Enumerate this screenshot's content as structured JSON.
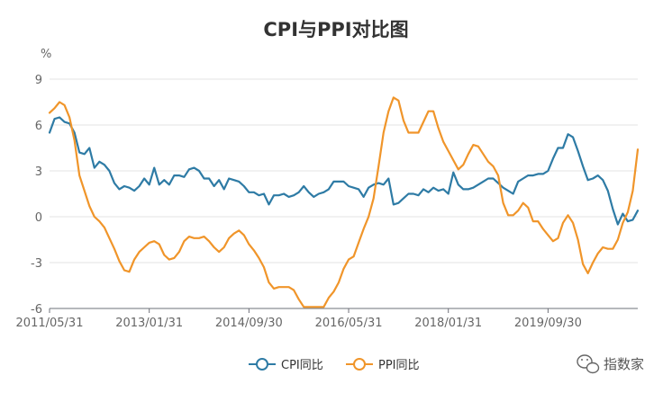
{
  "chart_data": {
    "type": "line",
    "title": "CPI与PPI对比图",
    "y_unit": "%",
    "ylim": [
      -6,
      9
    ],
    "y_ticks": [
      "9",
      "6",
      "3",
      "0",
      "-3",
      "-6"
    ],
    "x_tick_labels": [
      "2011/05/31",
      "2013/01/31",
      "2014/09/30",
      "2016/05/31",
      "2018/01/31",
      "2019/09/30"
    ],
    "grid": "horizontal",
    "legend_position": "bottom-center",
    "series": [
      {
        "name": "CPI同比",
        "color": "#2e7ba5",
        "values": [
          5.5,
          6.4,
          6.5,
          6.2,
          6.1,
          5.5,
          4.2,
          4.1,
          4.5,
          3.2,
          3.6,
          3.4,
          3.0,
          2.2,
          1.8,
          2.0,
          1.9,
          1.7,
          2.0,
          2.5,
          2.1,
          3.2,
          2.1,
          2.4,
          2.1,
          2.7,
          2.7,
          2.6,
          3.1,
          3.2,
          3.0,
          2.5,
          2.5,
          2.0,
          2.4,
          1.8,
          2.5,
          2.4,
          2.3,
          2.0,
          1.6,
          1.6,
          1.4,
          1.5,
          0.8,
          1.4,
          1.4,
          1.5,
          1.3,
          1.4,
          1.6,
          2.0,
          1.6,
          1.3,
          1.5,
          1.6,
          1.8,
          2.3,
          2.3,
          2.3,
          2.0,
          1.9,
          1.8,
          1.3,
          1.9,
          2.1,
          2.2,
          2.1,
          2.5,
          0.8,
          0.9,
          1.2,
          1.5,
          1.5,
          1.4,
          1.8,
          1.6,
          1.9,
          1.7,
          1.8,
          1.5,
          2.9,
          2.1,
          1.8,
          1.8,
          1.9,
          2.1,
          2.3,
          2.5,
          2.5,
          2.2,
          1.9,
          1.7,
          1.5,
          2.3,
          2.5,
          2.7,
          2.7,
          2.8,
          2.8,
          3.0,
          3.8,
          4.5,
          4.5,
          5.4,
          5.2,
          4.3,
          3.3,
          2.4,
          2.5,
          2.7,
          2.4,
          1.7,
          0.5,
          -0.5,
          0.2,
          -0.3,
          -0.2,
          0.4
        ]
      },
      {
        "name": "PPI同比",
        "color": "#f0952a",
        "values": [
          6.8,
          7.1,
          7.5,
          7.3,
          6.5,
          5.0,
          2.7,
          1.7,
          0.7,
          0.0,
          -0.3,
          -0.7,
          -1.4,
          -2.1,
          -2.9,
          -3.5,
          -3.6,
          -2.8,
          -2.3,
          -2.0,
          -1.7,
          -1.6,
          -1.8,
          -2.5,
          -2.8,
          -2.7,
          -2.3,
          -1.6,
          -1.3,
          -1.4,
          -1.4,
          -1.3,
          -1.6,
          -2.0,
          -2.3,
          -2.0,
          -1.4,
          -1.1,
          -0.9,
          -1.2,
          -1.8,
          -2.2,
          -2.7,
          -3.3,
          -4.3,
          -4.7,
          -4.6,
          -4.6,
          -4.6,
          -4.8,
          -5.4,
          -5.9,
          -5.9,
          -5.9,
          -5.9,
          -5.9,
          -5.3,
          -4.9,
          -4.3,
          -3.4,
          -2.8,
          -2.6,
          -1.7,
          -0.8,
          0.0,
          1.2,
          3.3,
          5.5,
          6.9,
          7.8,
          7.6,
          6.3,
          5.5,
          5.5,
          5.5,
          6.2,
          6.9,
          6.9,
          5.8,
          4.9,
          4.3,
          3.7,
          3.1,
          3.4,
          4.1,
          4.7,
          4.6,
          4.1,
          3.6,
          3.3,
          2.7,
          0.9,
          0.1,
          0.1,
          0.4,
          0.9,
          0.6,
          -0.3,
          -0.3,
          -0.8,
          -1.2,
          -1.6,
          -1.4,
          -0.4,
          0.1,
          -0.4,
          -1.5,
          -3.1,
          -3.7,
          -3.0,
          -2.4,
          -2.0,
          -2.1,
          -2.1,
          -1.5,
          -0.4,
          0.3,
          1.7,
          4.4
        ]
      }
    ]
  },
  "watermark": {
    "text": "指数家",
    "icon": "wechat-icon"
  }
}
